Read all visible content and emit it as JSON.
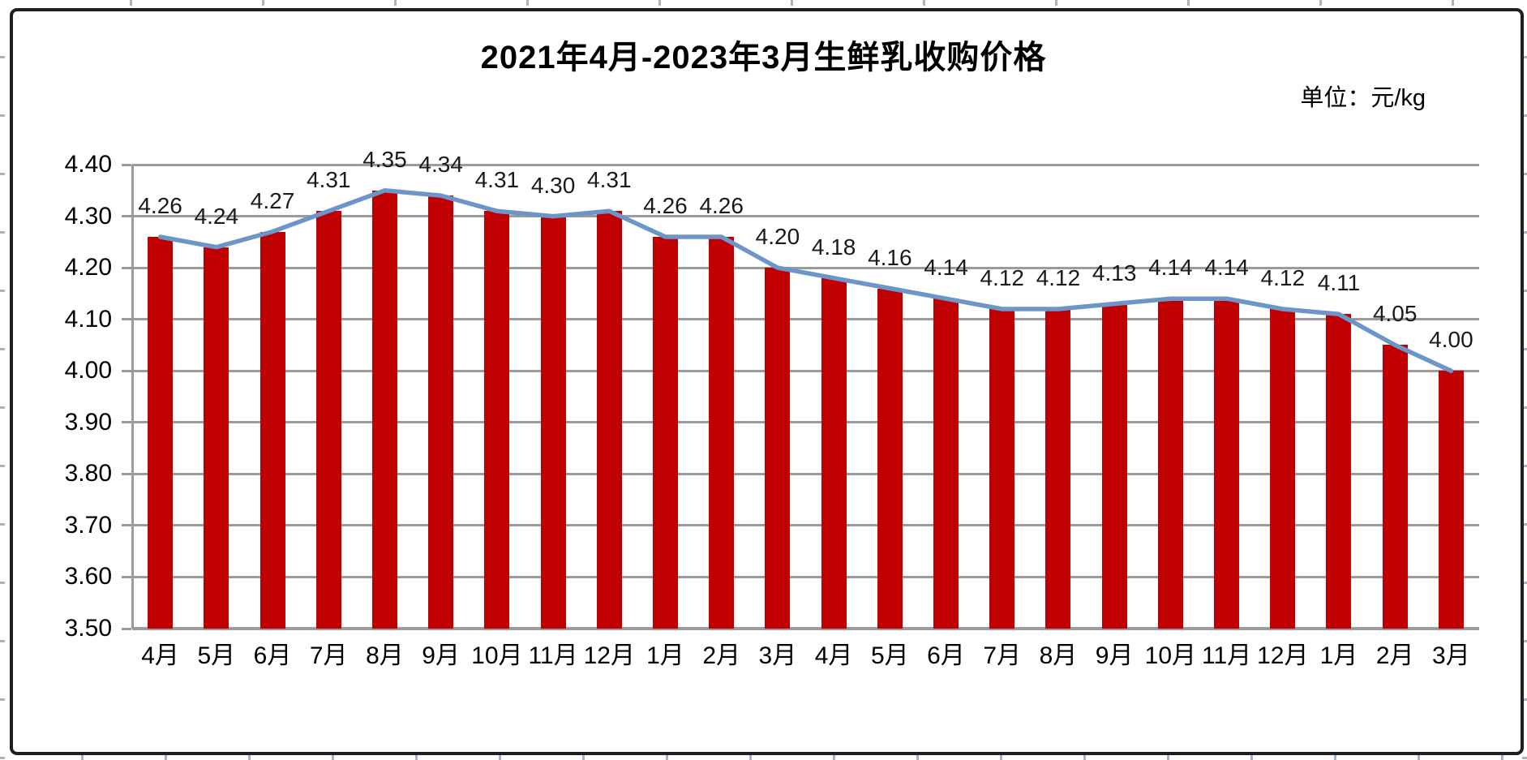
{
  "title": "2021年4月-2023年3月生鲜乳收购价格",
  "unit_label": "单位：元/kg",
  "colors": {
    "bar": "#C00000",
    "line": "#6C95C9",
    "grid": "#9B9B9B",
    "axis_text": "#000000",
    "data_label_text": "#1A1A1A",
    "border": "#1F1F1F"
  },
  "chart_data": {
    "type": "bar",
    "title": "2021年4月-2023年3月生鲜乳收购价格",
    "unit": "元/kg",
    "categories": [
      "4月",
      "5月",
      "6月",
      "7月",
      "8月",
      "9月",
      "10月",
      "11月",
      "12月",
      "1月",
      "2月",
      "3月",
      "4月",
      "5月",
      "6月",
      "7月",
      "8月",
      "9月",
      "10月",
      "11月",
      "12月",
      "1月",
      "2月",
      "3月"
    ],
    "series": [
      {
        "type": "bar",
        "values": [
          4.26,
          4.24,
          4.27,
          4.31,
          4.35,
          4.34,
          4.31,
          4.3,
          4.31,
          4.26,
          4.26,
          4.2,
          4.18,
          4.16,
          4.14,
          4.12,
          4.12,
          4.13,
          4.14,
          4.14,
          4.12,
          4.11,
          4.05,
          4.0
        ]
      },
      {
        "type": "line",
        "values": [
          4.26,
          4.24,
          4.27,
          4.31,
          4.35,
          4.34,
          4.31,
          4.3,
          4.31,
          4.26,
          4.26,
          4.2,
          4.18,
          4.16,
          4.14,
          4.12,
          4.12,
          4.13,
          4.14,
          4.14,
          4.12,
          4.11,
          4.05,
          4.0
        ]
      }
    ],
    "data_labels": [
      "4.26",
      "4.24",
      "4.27",
      "4.31",
      "4.35",
      "4.34",
      "4.31",
      "4.30",
      "4.31",
      "4.26",
      "4.26",
      "4.20",
      "4.18",
      "4.16",
      "4.14",
      "4.12",
      "4.12",
      "4.13",
      "4.14",
      "4.14",
      "4.12",
      "4.11",
      "4.05",
      "4.00"
    ],
    "ylim": [
      3.5,
      4.4
    ],
    "ytick_step": 0.1,
    "yticks": [
      "4.40",
      "4.30",
      "4.20",
      "4.10",
      "4.00",
      "3.90",
      "3.80",
      "3.70",
      "3.60",
      "3.50"
    ],
    "grid": true,
    "legend_position": "none",
    "data_label_position": "above"
  }
}
